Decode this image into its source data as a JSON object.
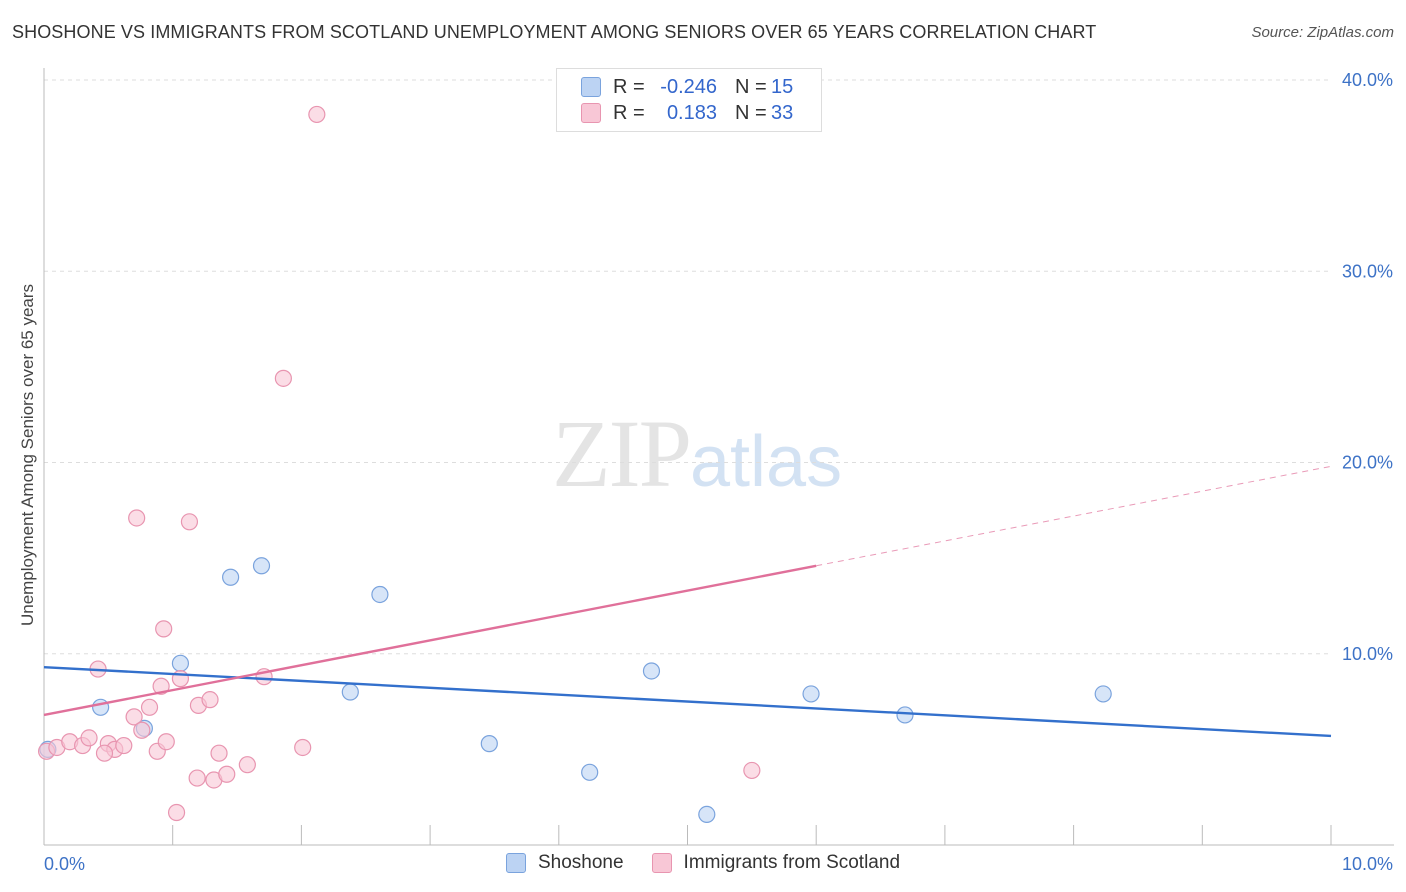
{
  "title": "SHOSHONE VS IMMIGRANTS FROM SCOTLAND UNEMPLOYMENT AMONG SENIORS OVER 65 YEARS CORRELATION CHART",
  "source": "Source: ZipAtlas.com",
  "watermark": {
    "zip": "ZIP",
    "atlas": "atlas"
  },
  "legend_top": {
    "rows": [
      {
        "r_label": "R =",
        "r_value": "-0.246",
        "n_label": "N =",
        "n_value": "15"
      },
      {
        "r_label": "R =",
        "r_value": "0.183",
        "n_label": "N =",
        "n_value": "33"
      }
    ]
  },
  "colors": {
    "blue_fill": "#bcd3f3",
    "blue_stroke": "#7aa3dd",
    "blue_line": "#3370cc",
    "pink_fill": "#f8c7d6",
    "pink_stroke": "#e895b0",
    "pink_line": "#e0709a",
    "grid": "#dddddd",
    "tick_text": "#3d72c6"
  },
  "chart_data": {
    "type": "scatter",
    "title": "SHOSHONE VS IMMIGRANTS FROM SCOTLAND UNEMPLOYMENT AMONG SENIORS OVER 65 YEARS CORRELATION CHART",
    "xlabel": "",
    "ylabel": "Unemployment Among Seniors over 65 years",
    "xlim": [
      0,
      10
    ],
    "ylim": [
      0,
      40
    ],
    "x_tick_labels": [
      {
        "value": 0,
        "label": "0.0%"
      },
      {
        "value": 10,
        "label": "10.0%"
      }
    ],
    "y_tick_labels": [
      {
        "value": 10,
        "label": "10.0%"
      },
      {
        "value": 20,
        "label": "20.0%"
      },
      {
        "value": 30,
        "label": "30.0%"
      },
      {
        "value": 40,
        "label": "40.0%"
      }
    ],
    "legend_position": "bottom",
    "series": [
      {
        "name": "Shoshone",
        "color": "blue",
        "points": [
          [
            0.03,
            5.0
          ],
          [
            0.44,
            7.2
          ],
          [
            0.78,
            6.1
          ],
          [
            1.06,
            9.5
          ],
          [
            1.45,
            14.0
          ],
          [
            1.69,
            14.6
          ],
          [
            2.38,
            8.0
          ],
          [
            2.61,
            13.1
          ],
          [
            3.46,
            5.3
          ],
          [
            4.24,
            3.8
          ],
          [
            4.72,
            9.1
          ],
          [
            5.15,
            1.6
          ],
          [
            5.96,
            7.9
          ],
          [
            6.69,
            6.8
          ],
          [
            8.23,
            7.9
          ]
        ],
        "trend": {
          "x": [
            0,
            10
          ],
          "y": [
            9.3,
            5.7
          ],
          "dashed_from": null
        }
      },
      {
        "name": "Immigrants from Scotland",
        "color": "pink",
        "points": [
          [
            0.02,
            4.9
          ],
          [
            0.1,
            5.1
          ],
          [
            0.2,
            5.4
          ],
          [
            0.3,
            5.2
          ],
          [
            0.35,
            5.6
          ],
          [
            0.42,
            9.2
          ],
          [
            0.5,
            5.3
          ],
          [
            0.55,
            5.0
          ],
          [
            0.62,
            5.2
          ],
          [
            0.7,
            6.7
          ],
          [
            0.76,
            6.0
          ],
          [
            0.82,
            7.2
          ],
          [
            0.88,
            4.9
          ],
          [
            0.95,
            5.4
          ],
          [
            0.72,
            17.1
          ],
          [
            0.91,
            8.3
          ],
          [
            1.06,
            8.7
          ],
          [
            0.93,
            11.3
          ],
          [
            1.13,
            16.9
          ],
          [
            1.2,
            7.3
          ],
          [
            1.29,
            7.6
          ],
          [
            1.32,
            3.4
          ],
          [
            1.36,
            4.8
          ],
          [
            1.42,
            3.7
          ],
          [
            1.58,
            4.2
          ],
          [
            1.71,
            8.8
          ],
          [
            1.86,
            24.4
          ],
          [
            2.01,
            5.1
          ],
          [
            2.12,
            38.2
          ],
          [
            1.03,
            1.7
          ],
          [
            1.19,
            3.5
          ],
          [
            0.47,
            4.8
          ],
          [
            5.5,
            3.9
          ]
        ],
        "trend": {
          "x": [
            0,
            10
          ],
          "y": [
            6.8,
            19.8
          ],
          "dashed_from": 6.0
        }
      }
    ]
  },
  "legend_bottom": {
    "items": [
      "Shoshone",
      "Immigrants from Scotland"
    ]
  }
}
